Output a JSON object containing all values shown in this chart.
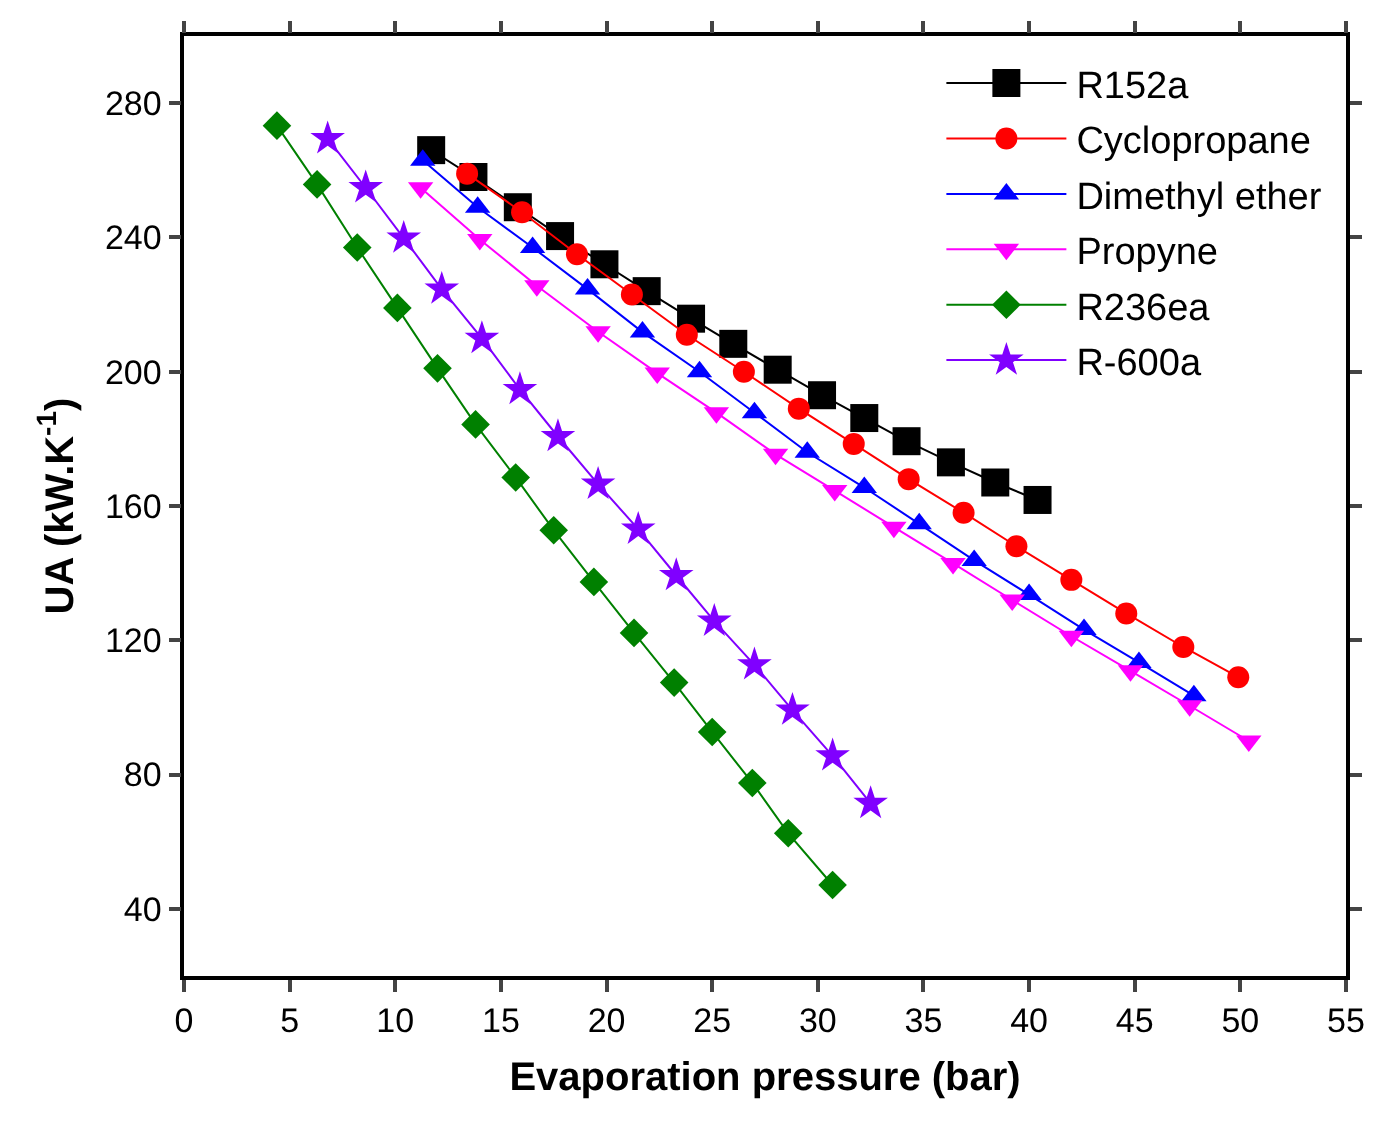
{
  "chart_data": {
    "type": "line",
    "xlabel": "Evaporation pressure (bar)",
    "ylabel": "UA (kW.K$^{-1}$)",
    "xlim": [
      0,
      55
    ],
    "ylim": [
      20,
      300
    ],
    "xticks": [
      0,
      5,
      10,
      15,
      20,
      25,
      30,
      35,
      40,
      45,
      50,
      55
    ],
    "yticks": [
      40,
      80,
      120,
      160,
      200,
      240,
      280
    ],
    "grid": false,
    "legend": "top right",
    "line_style": "solid",
    "series": [
      {
        "name": "R152a",
        "color": "#000000",
        "marker": "square",
        "x": [
          11.7,
          13.7,
          15.8,
          17.8,
          19.9,
          21.9,
          24.0,
          26.0,
          28.1,
          30.2,
          32.2,
          34.2,
          36.3,
          38.4,
          40.4
        ],
        "values": [
          266,
          258,
          249,
          240.4,
          232,
          224,
          215.8,
          208.3,
          200.6,
          193,
          186.2,
          179.3,
          173,
          167,
          161.8
        ]
      },
      {
        "name": "Cyclopropane",
        "color": "#ff0000",
        "marker": "circle",
        "x": [
          13.4,
          16.0,
          18.6,
          21.2,
          23.8,
          26.5,
          29.1,
          31.7,
          34.3,
          36.9,
          39.4,
          42.0,
          44.6,
          47.3,
          49.9
        ],
        "values": [
          259,
          247.5,
          235,
          223,
          211,
          200,
          189,
          178.5,
          168,
          158,
          148,
          138,
          128,
          118,
          109
        ]
      },
      {
        "name": "Dimethyl ether",
        "color": "#0000ff",
        "marker": "triangle",
        "x": [
          11.3,
          13.9,
          16.5,
          19.1,
          21.7,
          24.4,
          27.0,
          29.5,
          32.2,
          34.8,
          37.4,
          40.0,
          42.6,
          45.2,
          47.8
        ],
        "values": [
          263,
          249,
          237,
          224.6,
          211.8,
          200,
          187.8,
          176,
          165.5,
          154.7,
          143.8,
          133.6,
          123.2,
          113.4,
          103.5
        ]
      },
      {
        "name": "Propyne",
        "color": "#ff00ff",
        "marker": "triangle-down",
        "x": [
          11.2,
          14.0,
          16.7,
          19.6,
          22.4,
          25.2,
          28.0,
          30.8,
          33.6,
          36.4,
          39.2,
          42.0,
          44.8,
          47.6,
          50.4
        ],
        "values": [
          254.8,
          239.4,
          225.6,
          211.9,
          199.6,
          187.8,
          175.4,
          164.6,
          153.7,
          142.9,
          132,
          121.2,
          110.9,
          100.5,
          90
        ]
      },
      {
        "name": "R236ea",
        "color": "#008000",
        "marker": "diamond",
        "x": [
          4.4,
          6.3,
          8.2,
          10.1,
          12.0,
          13.8,
          15.7,
          17.5,
          19.4,
          21.3,
          23.2,
          25.0,
          26.9,
          28.6,
          30.7
        ],
        "values": [
          273.3,
          255.8,
          237,
          219,
          201,
          184.3,
          168.5,
          152.8,
          137.4,
          122.2,
          107.4,
          92.7,
          77.5,
          62.5,
          47.1
        ]
      },
      {
        "name": "R-600a",
        "color": "#8000ff",
        "marker": "star",
        "x": [
          6.8,
          8.6,
          10.4,
          12.2,
          14.1,
          15.9,
          17.7,
          19.6,
          21.5,
          23.3,
          25.1,
          27.0,
          28.8,
          30.7,
          32.5
        ],
        "values": [
          269.4,
          254.8,
          239.8,
          224.6,
          209.9,
          194.7,
          180.7,
          166.5,
          153.1,
          139.3,
          125.7,
          112.7,
          99.2,
          85.6,
          71.4
        ]
      }
    ]
  }
}
